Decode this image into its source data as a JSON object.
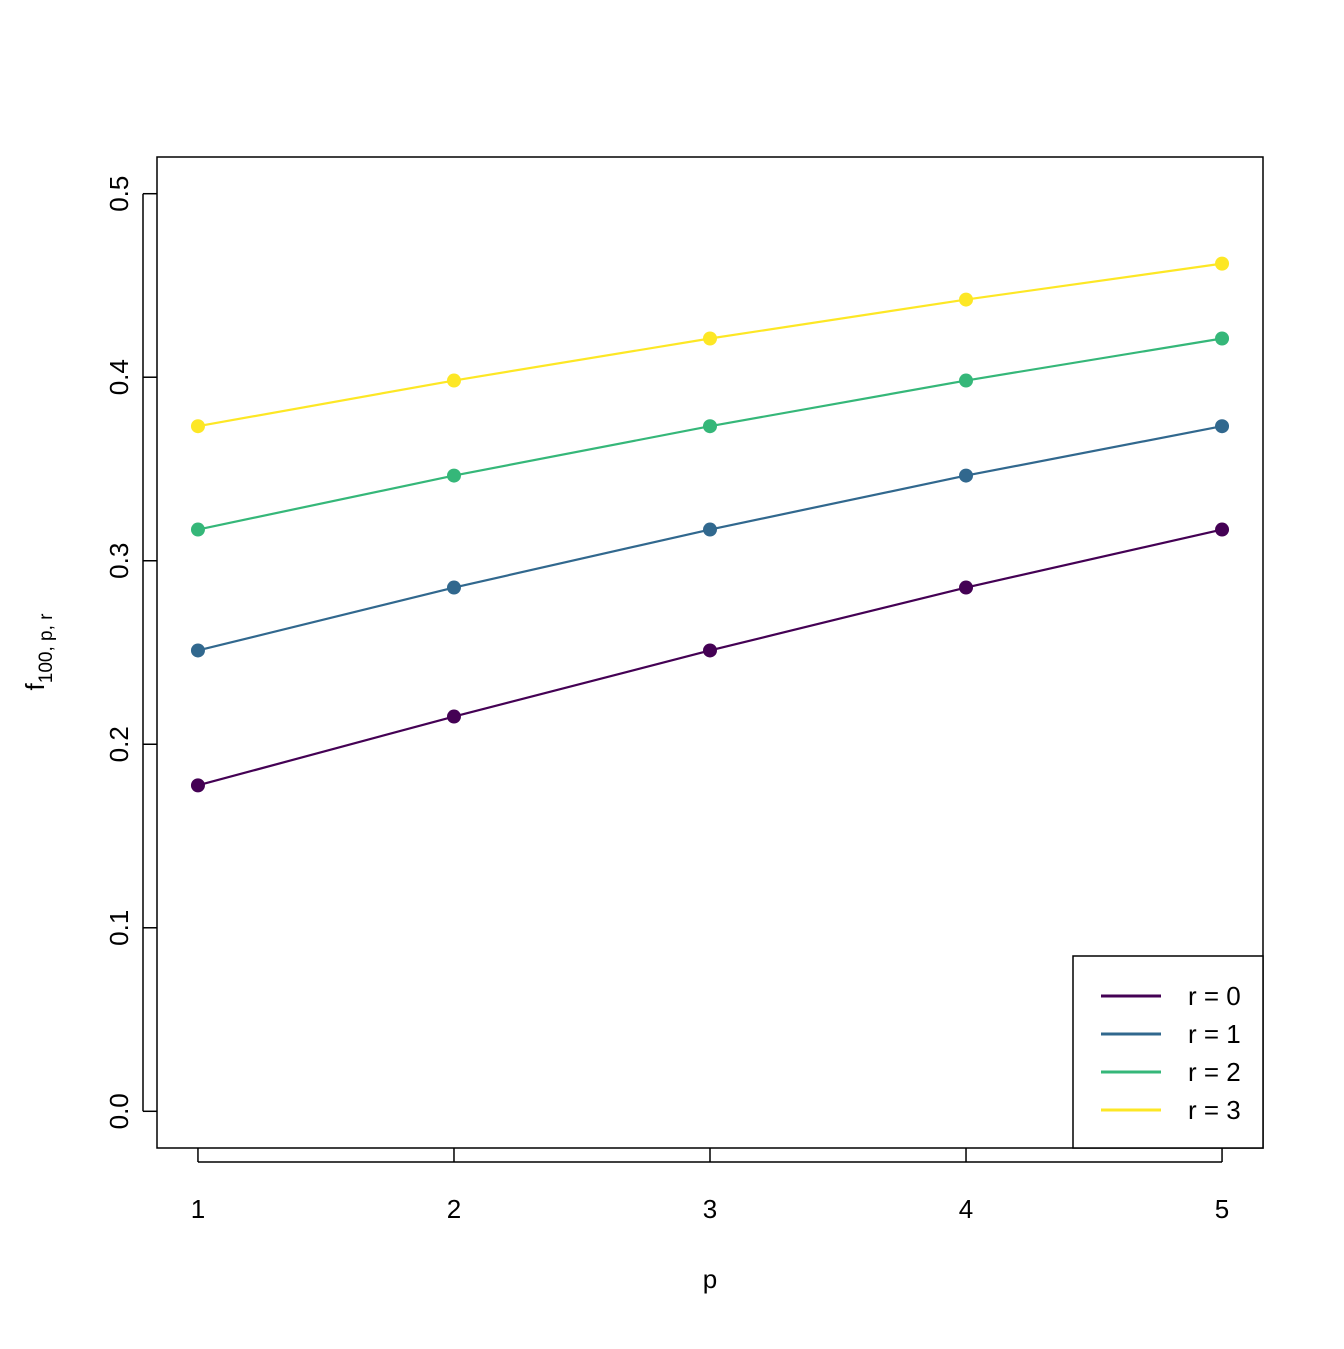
{
  "chart_data": {
    "type": "line",
    "xlabel": "p",
    "ylabel": "f",
    "ylabel_sub": "100, p, r",
    "x": [
      1,
      2,
      3,
      4,
      5
    ],
    "series": [
      {
        "name": "r = 0",
        "color": "#440154",
        "values": [
          0.1776,
          0.2151,
          0.2511,
          0.2854,
          0.317
        ]
      },
      {
        "name": "r = 1",
        "color": "#31688E",
        "values": [
          0.2511,
          0.2854,
          0.317,
          0.3464,
          0.3733
        ]
      },
      {
        "name": "r = 2",
        "color": "#35B779",
        "values": [
          0.317,
          0.3464,
          0.3733,
          0.3982,
          0.4211
        ]
      },
      {
        "name": "r = 3",
        "color": "#FDE725",
        "values": [
          0.3733,
          0.3982,
          0.4211,
          0.4423,
          0.4619
        ]
      }
    ],
    "xlim": [
      0.84,
      5.16
    ],
    "xticks": [
      1,
      2,
      3,
      4,
      5
    ],
    "ylim": [
      -0.02,
      0.52
    ],
    "yticks": [
      {
        "value": 0,
        "label": "0.0"
      },
      0.1,
      0.2,
      0.3,
      0.4,
      0.5
    ],
    "legend": "bottomright",
    "grid": false
  }
}
